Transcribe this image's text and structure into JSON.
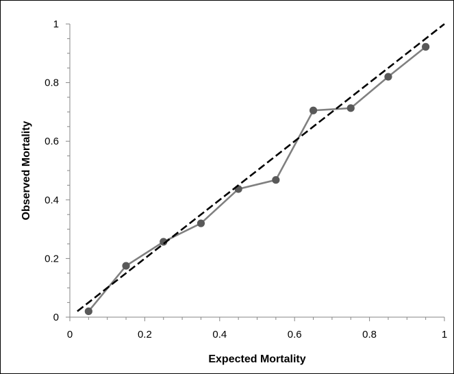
{
  "chart_data": {
    "type": "scatter",
    "title": "",
    "xlabel": "Expected Mortality",
    "ylabel": "Observed Mortality",
    "xlim": [
      0,
      1
    ],
    "ylim": [
      0,
      1
    ],
    "xticks": [
      0,
      0.2,
      0.4,
      0.6,
      0.8,
      1
    ],
    "yticks": [
      0,
      0.2,
      0.4,
      0.6,
      0.8,
      1
    ],
    "x_tick_labels": [
      "0",
      "0.2",
      "0.4",
      "0.6",
      "0.8",
      "1"
    ],
    "y_tick_labels": [
      "0",
      "0.2",
      "0.4",
      "0.6",
      "0.8",
      "1"
    ],
    "grid": false,
    "legend": "none",
    "series": [
      {
        "style": "line-with-markers",
        "color": "#808080",
        "marker_color": "#595959",
        "x": [
          0.05,
          0.15,
          0.25,
          0.35,
          0.45,
          0.55,
          0.65,
          0.75,
          0.85,
          0.95
        ],
        "y": [
          0.02,
          0.175,
          0.257,
          0.32,
          0.437,
          0.468,
          0.705,
          0.713,
          0.82,
          0.922
        ]
      },
      {
        "style": "dashed-line",
        "color": "#000000",
        "x": [
          0.02,
          1.0
        ],
        "y": [
          0.02,
          1.0
        ]
      }
    ]
  }
}
